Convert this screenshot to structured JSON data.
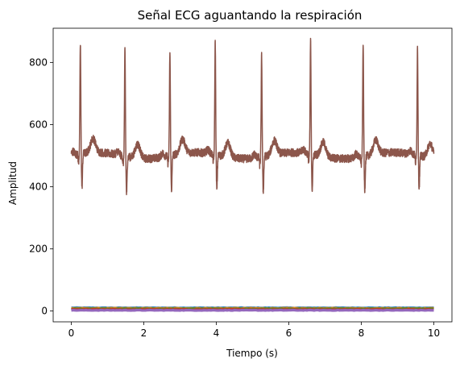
{
  "chart_data": {
    "type": "line",
    "title": "Señal ECG aguantando la respiración",
    "xlabel": "Tiempo (s)",
    "ylabel": "Amplitud",
    "xlim": [
      -0.5,
      10.5
    ],
    "ylim": [
      -35,
      910
    ],
    "xticks": [
      0,
      2,
      4,
      6,
      8,
      10
    ],
    "yticks": [
      0,
      200,
      400,
      600,
      800
    ],
    "grid": false,
    "series": [
      {
        "color": "#8c564b",
        "baseline": 500,
        "peak_times": [
          0.25,
          1.48,
          2.72,
          3.97,
          5.25,
          6.6,
          8.05,
          9.55
        ],
        "peak_values": [
          855,
          843,
          833,
          865,
          828,
          866,
          868,
          848
        ],
        "trough_values": [
          393,
          382,
          390,
          388,
          388,
          388,
          392,
          396
        ]
      },
      {
        "color": "#1f77b4",
        "values_near": 10
      },
      {
        "color": "#ff7f0e",
        "values_near": 8
      },
      {
        "color": "#2ca02c",
        "values_near": 6
      },
      {
        "color": "#d62728",
        "values_near": 4
      },
      {
        "color": "#9467bd",
        "values_near": 2
      }
    ]
  }
}
